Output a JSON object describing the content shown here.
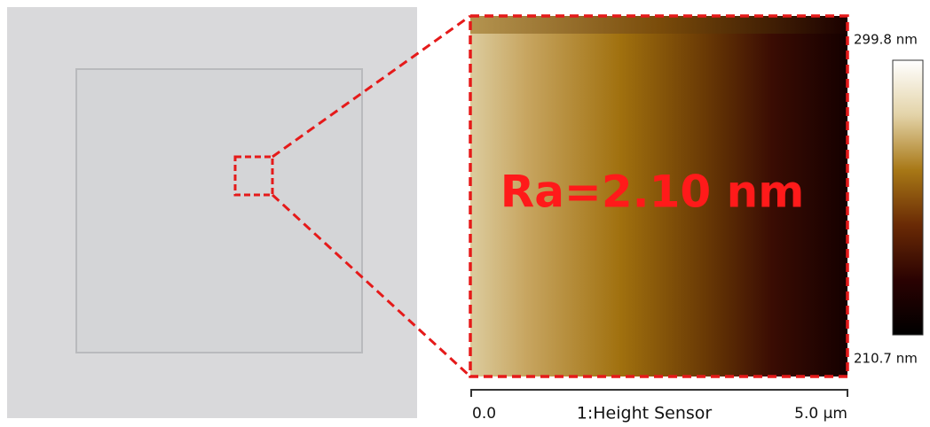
{
  "afm": {
    "roughness_label": "Ra=2.10 nm",
    "scale_max": "299.8 nm",
    "scale_min": "210.7 nm",
    "axis_start": "0.0",
    "axis_title": "1:Height Sensor",
    "axis_end": "5.0 µm"
  }
}
